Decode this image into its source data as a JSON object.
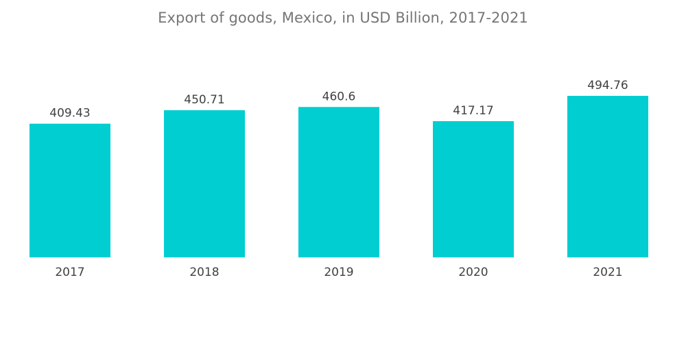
{
  "chart_data": {
    "type": "bar",
    "title": "Export of goods, Mexico, in USD Billion, 2017-2021",
    "xlabel": "",
    "ylabel": "",
    "categories": [
      "2017",
      "2018",
      "2019",
      "2020",
      "2021"
    ],
    "values": [
      409.43,
      450.71,
      460.6,
      417.17,
      494.76
    ],
    "value_labels": [
      "409.43",
      "450.71",
      "460.6",
      "417.17",
      "494.76"
    ],
    "ylim": [
      0,
      550
    ],
    "grid": false,
    "legend": "none",
    "colors": {
      "bar": "#00CED1",
      "text": "#404040",
      "title": "#757575"
    }
  }
}
